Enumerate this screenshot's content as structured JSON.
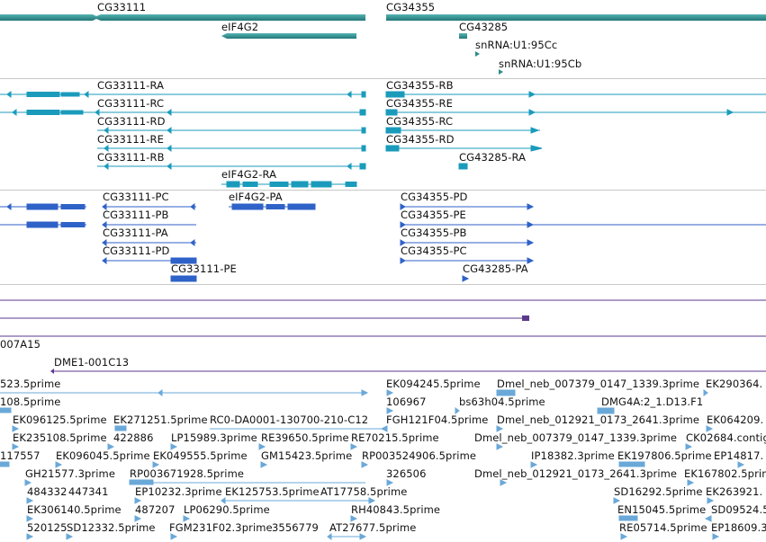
{
  "genes": {
    "cg33111": "CG33111",
    "cg34355": "CG34355",
    "eif4g2": "eIF4G2",
    "cg43285": "CG43285",
    "snrna_95cc": "snRNA:U1:95Cc",
    "snrna_95cb": "snRNA:U1:95Cb"
  },
  "transcripts_r": {
    "ra": "CG33111-RA",
    "rc": "CG33111-RC",
    "rd": "CG33111-RD",
    "re": "CG33111-RE",
    "rb": "CG33111-RB",
    "eif4g2_ra": "eIF4G2-RA",
    "cg34355_rb": "CG34355-RB",
    "cg34355_re": "CG34355-RE",
    "cg34355_rc": "CG34355-RC",
    "cg34355_rd": "CG34355-RD",
    "cg43285_ra": "CG43285-RA"
  },
  "transcripts_p": {
    "pc": "CG33111-PC",
    "pb": "CG33111-PB",
    "pa": "CG33111-PA",
    "pd": "CG33111-PD",
    "pe": "CG33111-PE",
    "eif4g2_pa": "eIF4G2-PA",
    "cg34355_pd": "CG34355-PD",
    "cg34355_pe": "CG34355-PE",
    "cg34355_pb": "CG34355-PB",
    "cg34355_pc": "CG34355-PC",
    "cg43285_pa": "CG43285-PA"
  },
  "clones": {
    "c1": "007A15",
    "c2": "DME1-001C13"
  },
  "ests": {
    "r1": [
      "523.5prime",
      "EK094245.5prime",
      "Dmel_neb_007379_0147_1339.3prime",
      "EK290364."
    ],
    "r2": [
      "108.5prime",
      "106967",
      "bs63h04.5prime",
      "DMG4A:2_1.D13.F1"
    ],
    "r3": [
      "EK096125.5prime",
      "EK271251.5prime",
      "RC0-DA0001-130700-210-C12",
      "FGH121F04.5prime",
      "Dmel_neb_012921_0173_2641.3prime",
      "EK064209."
    ],
    "r4": [
      "EK235108.5prime",
      "422886",
      "LP15989.3prime",
      "RE39650.5prime",
      "RE70215.5prime",
      "Dmel_neb_007379_0147_1339.3prime",
      "CK02684.contig"
    ],
    "r5": [
      "117557",
      "EK096045.5prime",
      "EK049555.5prime",
      "GM15423.5prime",
      "RP003524906.5prime",
      "IP18382.3prime",
      "EK197806.5prime",
      "EP14817."
    ],
    "r6": [
      "GH21577.3prime",
      "RP003671928.5prime",
      "326506",
      "Dmel_neb_012921_0173_2641.3prime",
      "EK167802.5prime"
    ],
    "r7": [
      "484332",
      "447341",
      "EP10232.3prime",
      "EK125753.5prime",
      "AT17758.5prime",
      "SD16292.5prime",
      "EK263921."
    ],
    "r8": [
      "EK306140.5prime",
      "487207",
      "LP06290.5prime",
      "RH40843.5prime",
      "EN15045.5prime",
      "SD09524.5"
    ],
    "r9": [
      "520125",
      "SD12332.5prime",
      "FGM231F02.3prime",
      "3556779",
      "AT27677.5prime",
      "RE05714.5prime",
      "EP18609.3"
    ]
  },
  "colors": {
    "gene": "#2e8b8b",
    "mrna": "#1a9bbb",
    "protein": "#2f62c8",
    "clone": "#5b3a8c",
    "est": "#6aa8d8",
    "separator": "#c8c8c8"
  }
}
